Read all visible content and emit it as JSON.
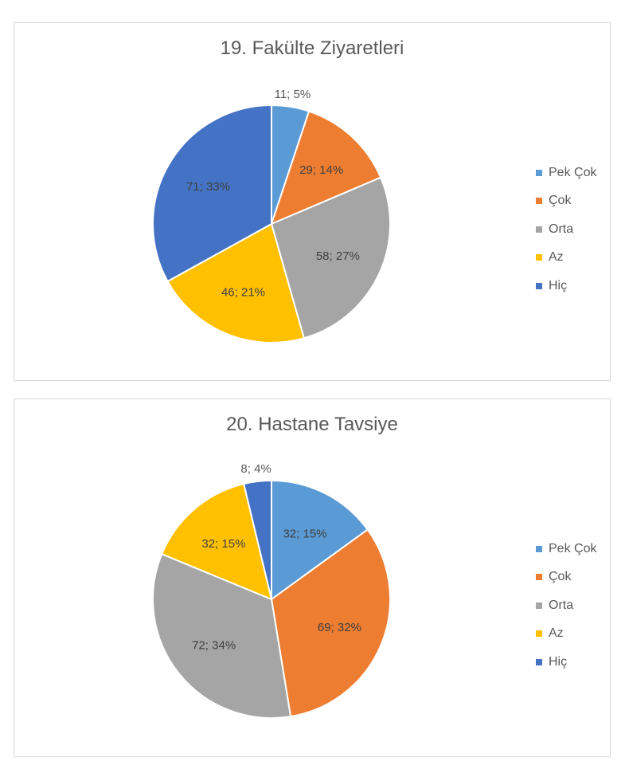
{
  "chart_data": [
    {
      "type": "pie",
      "title": "19. Fakülte Ziyaretleri",
      "categories": [
        "Pek Çok",
        "Çok",
        "Orta",
        "Az",
        "Hiç"
      ],
      "values": [
        11,
        29,
        58,
        46,
        71
      ],
      "labels": [
        "11; 5%",
        "29; 14%",
        "58; 27%",
        "46; 21%",
        "71; 33%"
      ],
      "colors": [
        "#5b9bd5",
        "#ed7d31",
        "#a5a5a5",
        "#ffc000",
        "#4472c4"
      ],
      "legend_position": "right"
    },
    {
      "type": "pie",
      "title": "20. Hastane Tavsiye",
      "categories": [
        "Pek Çok",
        "Çok",
        "Orta",
        "Az",
        "Hiç"
      ],
      "values": [
        32,
        69,
        72,
        32,
        8
      ],
      "labels": [
        "32; 15%",
        "69; 32%",
        "72; 34%",
        "32; 15%",
        "8; 4%"
      ],
      "colors": [
        "#5b9bd5",
        "#ed7d31",
        "#a5a5a5",
        "#ffc000",
        "#4472c4"
      ],
      "legend_position": "right"
    }
  ]
}
